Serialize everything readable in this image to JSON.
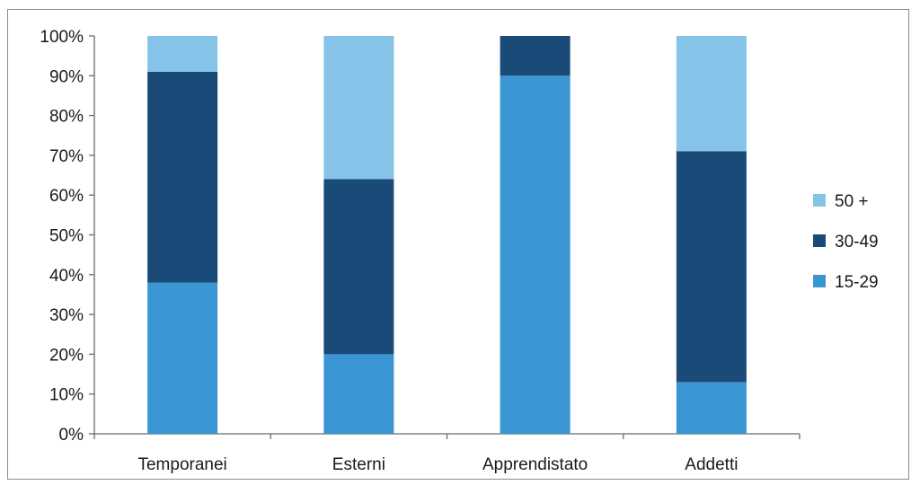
{
  "chart_data": {
    "type": "bar",
    "stacked": true,
    "percent": true,
    "categories": [
      "Temporanei",
      "Esterni",
      "Apprendistato",
      "Addetti"
    ],
    "series": [
      {
        "name": "15-29",
        "color": "#3a96d2",
        "values": [
          38,
          20,
          90,
          13
        ]
      },
      {
        "name": "30-49",
        "color": "#1a4a78",
        "values": [
          53,
          44,
          10,
          58
        ]
      },
      {
        "name": "50 +",
        "color": "#85c4e8",
        "values": [
          9,
          36,
          0,
          29
        ]
      }
    ],
    "ylim": [
      0,
      100
    ],
    "yticks": [
      "0%",
      "10%",
      "20%",
      "30%",
      "40%",
      "50%",
      "60%",
      "70%",
      "80%",
      "90%",
      "100%"
    ],
    "legend_position": "right",
    "legend_order": [
      "50 +",
      "30-49",
      "15-29"
    ],
    "grid": false
  }
}
